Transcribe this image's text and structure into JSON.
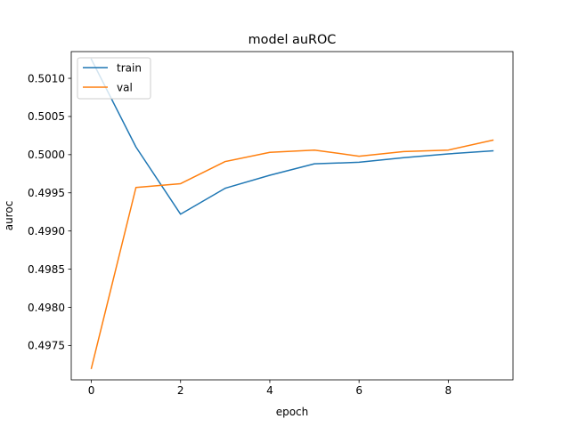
{
  "chart_data": {
    "type": "line",
    "title": "model auROC",
    "xlabel": "epoch",
    "ylabel": "auroc",
    "x": [
      0,
      1,
      2,
      3,
      4,
      5,
      6,
      7,
      8,
      9
    ],
    "xlim": [
      -0.45,
      9.45
    ],
    "ylim": [
      0.49705,
      0.50135
    ],
    "x_ticks": [
      0,
      2,
      4,
      6,
      8
    ],
    "y_ticks": [
      0.4975,
      0.498,
      0.4985,
      0.499,
      0.4995,
      0.5,
      0.5005,
      0.501
    ],
    "y_tick_labels": [
      "0.4975",
      "0.4980",
      "0.4985",
      "0.4990",
      "0.4995",
      "0.5000",
      "0.5005",
      "0.5010"
    ],
    "grid": false,
    "legend_position": "upper left",
    "series": [
      {
        "name": "train",
        "color": "#1f77b4",
        "values": [
          0.50125,
          0.5001,
          0.49922,
          0.49956,
          0.49973,
          0.49988,
          0.4999,
          0.49996,
          0.50001,
          0.50005
        ]
      },
      {
        "name": "val",
        "color": "#ff7f0e",
        "values": [
          0.4972,
          0.49957,
          0.49962,
          0.49991,
          0.50003,
          0.50006,
          0.49998,
          0.50004,
          0.50006,
          0.50019
        ]
      }
    ]
  }
}
